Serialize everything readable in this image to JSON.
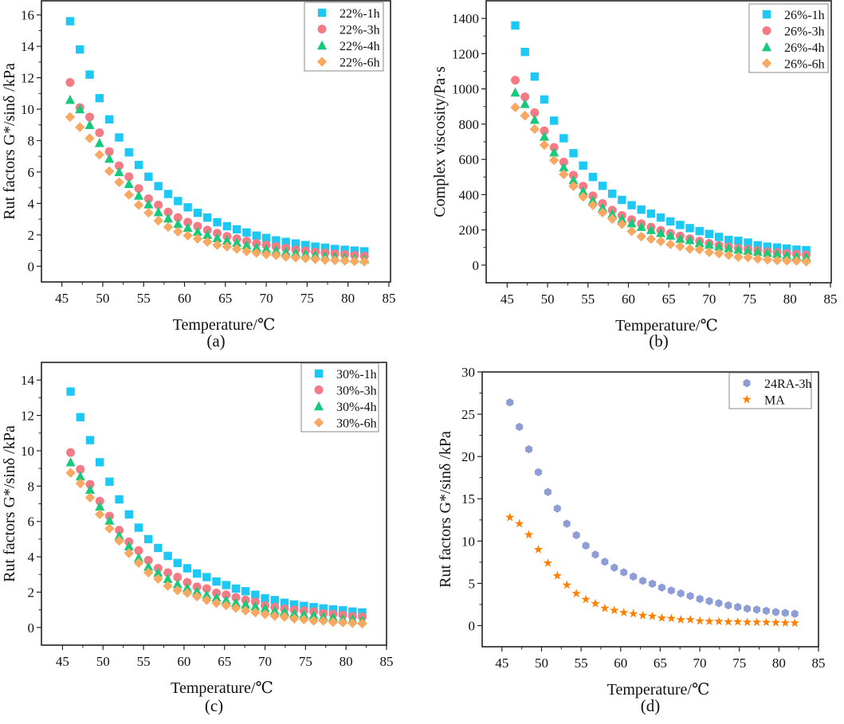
{
  "chart_data": [
    {
      "id": "a",
      "type": "scatter",
      "caption": "(a)",
      "xlabel": "Temperature/℃",
      "ylabel": "Rut factors G*/sinδ /kPa",
      "xlim": [
        42.5,
        85.2
      ],
      "ylim": [
        -1,
        16.9
      ],
      "xticks": [
        45,
        50,
        55,
        60,
        65,
        70,
        75,
        80,
        85
      ],
      "yticks": [
        0,
        2,
        4,
        6,
        8,
        10,
        12,
        14,
        16
      ],
      "legend": "top-right",
      "x": [
        46,
        47.2,
        48.4,
        49.6,
        50.8,
        52,
        53.2,
        54.4,
        55.6,
        56.8,
        58,
        59.2,
        60.4,
        61.6,
        62.8,
        64,
        65.2,
        66.4,
        67.6,
        68.8,
        70,
        71.2,
        72.4,
        73.6,
        74.8,
        76,
        77.2,
        78.4,
        79.6,
        80.8,
        82
      ],
      "series": [
        {
          "name": "22%-1h",
          "marker": "square",
          "color": "#1ec8f5",
          "values": [
            15.6,
            13.8,
            12.2,
            10.7,
            9.35,
            8.2,
            7.25,
            6.45,
            5.7,
            5.1,
            4.6,
            4.15,
            3.75,
            3.4,
            3.1,
            2.8,
            2.55,
            2.35,
            2.15,
            1.95,
            1.8,
            1.65,
            1.55,
            1.45,
            1.35,
            1.25,
            1.18,
            1.1,
            1.05,
            1.0,
            0.95
          ]
        },
        {
          "name": "22%-3h",
          "marker": "circle",
          "color": "#f47a86",
          "values": [
            11.7,
            10.1,
            9.5,
            8.5,
            7.3,
            6.4,
            5.7,
            4.95,
            4.3,
            3.9,
            3.45,
            3.1,
            2.8,
            2.55,
            2.3,
            2.1,
            1.9,
            1.75,
            1.6,
            1.45,
            1.35,
            1.25,
            1.15,
            1.05,
            0.98,
            0.9,
            0.85,
            0.8,
            0.75,
            0.7,
            0.65
          ]
        },
        {
          "name": "22%-4h",
          "marker": "triangle",
          "color": "#17c97a",
          "values": [
            10.6,
            10.0,
            9.0,
            7.85,
            6.85,
            6.0,
            5.25,
            4.5,
            3.95,
            3.45,
            3.05,
            2.7,
            2.45,
            2.2,
            2.0,
            1.8,
            1.65,
            1.5,
            1.35,
            1.2,
            1.1,
            1.0,
            0.92,
            0.85,
            0.78,
            0.72,
            0.65,
            0.6,
            0.55,
            0.5,
            0.45
          ]
        },
        {
          "name": "22%-6h",
          "marker": "diamond",
          "color": "#f9a862",
          "values": [
            9.5,
            8.85,
            8.15,
            7.1,
            6.05,
            5.35,
            4.55,
            3.9,
            3.4,
            2.9,
            2.5,
            2.2,
            1.95,
            1.75,
            1.55,
            1.35,
            1.25,
            1.1,
            0.95,
            0.85,
            0.75,
            0.7,
            0.6,
            0.55,
            0.5,
            0.45,
            0.4,
            0.38,
            0.35,
            0.32,
            0.3
          ]
        }
      ]
    },
    {
      "id": "b",
      "type": "scatter",
      "caption": "(b)",
      "xlabel": "Temperature/℃",
      "ylabel": "Complex viscosity/Pa·s",
      "xlim": [
        42.4,
        85.1
      ],
      "ylim": [
        -100,
        1500
      ],
      "xticks": [
        45,
        50,
        55,
        60,
        65,
        70,
        75,
        80,
        85
      ],
      "yticks": [
        0,
        200,
        400,
        600,
        800,
        1000,
        1200,
        1400
      ],
      "legend": "top-right",
      "x": [
        46,
        47.2,
        48.4,
        49.6,
        50.8,
        52,
        53.2,
        54.4,
        55.6,
        56.8,
        58,
        59.2,
        60.4,
        61.6,
        62.8,
        64,
        65.2,
        66.4,
        67.6,
        68.8,
        70,
        71.2,
        72.4,
        73.6,
        74.8,
        76,
        77.2,
        78.4,
        79.6,
        80.8,
        82
      ],
      "series": [
        {
          "name": "26%-1h",
          "marker": "square",
          "color": "#1ec8f5",
          "values": [
            1360,
            1210,
            1070,
            940,
            820,
            720,
            635,
            565,
            500,
            450,
            405,
            370,
            340,
            315,
            292,
            270,
            248,
            228,
            210,
            193,
            177,
            160,
            143,
            138,
            128,
            113,
            105,
            100,
            94,
            88,
            85
          ]
        },
        {
          "name": "26%-3h",
          "marker": "circle",
          "color": "#f47a86",
          "values": [
            1050,
            955,
            865,
            762,
            668,
            585,
            510,
            448,
            393,
            350,
            312,
            282,
            258,
            235,
            215,
            197,
            180,
            165,
            150,
            136,
            124,
            112,
            104,
            96,
            90,
            83,
            77,
            72,
            67,
            62,
            58
          ]
        },
        {
          "name": "26%-4h",
          "marker": "triangle",
          "color": "#17c97a",
          "values": [
            980,
            915,
            825,
            730,
            640,
            555,
            482,
            420,
            368,
            325,
            290,
            262,
            238,
            218,
            200,
            183,
            168,
            150,
            142,
            125,
            116,
            106,
            96,
            88,
            82,
            76,
            70,
            64,
            56,
            50,
            46
          ]
        },
        {
          "name": "26%-6h",
          "marker": "diamond",
          "color": "#f9a862",
          "values": [
            895,
            848,
            772,
            682,
            595,
            515,
            448,
            388,
            340,
            298,
            262,
            232,
            192,
            162,
            148,
            135,
            118,
            106,
            92,
            88,
            73,
            66,
            57,
            46,
            44,
            36,
            31,
            27,
            25,
            24,
            20
          ]
        }
      ]
    },
    {
      "id": "c",
      "type": "scatter",
      "caption": "(c)",
      "xlabel": "Temperature/℃",
      "ylabel": "Rut factors G*/sinδ /kPa",
      "xlim": [
        42.4,
        85
      ],
      "ylim": [
        -1,
        15
      ],
      "xticks": [
        45,
        50,
        55,
        60,
        65,
        70,
        75,
        80,
        85
      ],
      "yticks": [
        0,
        2,
        4,
        6,
        8,
        10,
        12,
        14
      ],
      "legend": "top-right",
      "x": [
        46,
        47.2,
        48.4,
        49.6,
        50.8,
        52,
        53.2,
        54.4,
        55.6,
        56.8,
        58,
        59.2,
        60.4,
        61.6,
        62.8,
        64,
        65.2,
        66.4,
        67.6,
        68.8,
        70,
        71.2,
        72.4,
        73.6,
        74.8,
        76,
        77.2,
        78.4,
        79.6,
        80.8,
        82
      ],
      "series": [
        {
          "name": "30%-1h",
          "marker": "square",
          "color": "#1ec8f5",
          "values": [
            13.35,
            11.9,
            10.6,
            9.35,
            8.25,
            7.25,
            6.4,
            5.65,
            5.0,
            4.5,
            4.05,
            3.65,
            3.35,
            3.05,
            2.85,
            2.6,
            2.4,
            2.2,
            2.05,
            1.85,
            1.65,
            1.55,
            1.4,
            1.3,
            1.22,
            1.15,
            1.08,
            1.02,
            0.97,
            0.9,
            0.85
          ]
        },
        {
          "name": "30%-3h",
          "marker": "circle",
          "color": "#f47a86",
          "values": [
            9.9,
            8.95,
            8.1,
            7.15,
            6.3,
            5.5,
            4.85,
            4.35,
            3.8,
            3.35,
            3.1,
            2.85,
            2.55,
            2.3,
            2.2,
            1.95,
            1.85,
            1.7,
            1.55,
            1.45,
            1.25,
            1.15,
            1.05,
            1.0,
            0.95,
            0.9,
            0.8,
            0.75,
            0.7,
            0.62,
            0.6
          ]
        },
        {
          "name": "30%-4h",
          "marker": "triangle",
          "color": "#17c97a",
          "values": [
            9.35,
            8.55,
            7.8,
            6.85,
            6.05,
            5.2,
            4.6,
            3.95,
            3.45,
            3.1,
            2.75,
            2.45,
            2.25,
            2.05,
            1.85,
            1.7,
            1.55,
            1.4,
            1.3,
            1.2,
            1.1,
            0.95,
            0.9,
            0.8,
            0.75,
            0.7,
            0.62,
            0.58,
            0.5,
            0.48,
            0.4
          ]
        },
        {
          "name": "30%-6h",
          "marker": "diamond",
          "color": "#f9a862",
          "values": [
            8.75,
            8.15,
            7.35,
            6.4,
            5.6,
            4.9,
            4.2,
            3.65,
            3.1,
            2.75,
            2.35,
            2.1,
            1.95,
            1.75,
            1.55,
            1.38,
            1.25,
            1.1,
            0.95,
            0.85,
            0.75,
            0.65,
            0.6,
            0.5,
            0.45,
            0.38,
            0.37,
            0.3,
            0.28,
            0.25,
            0.22
          ]
        }
      ]
    },
    {
      "id": "d",
      "type": "scatter",
      "caption": "(d)",
      "xlabel": "Temperature/℃",
      "ylabel": "Rut factors G*/sinδ /kPa",
      "xlim": [
        42.5,
        85
      ],
      "ylim": [
        -2.5,
        30
      ],
      "xticks": [
        45,
        50,
        55,
        60,
        65,
        70,
        75,
        80,
        85
      ],
      "yticks": [
        0,
        5,
        10,
        15,
        20,
        25,
        30
      ],
      "legend": "top-right",
      "x": [
        46,
        47.2,
        48.4,
        49.6,
        50.8,
        52,
        53.2,
        54.4,
        55.6,
        56.8,
        58,
        59.2,
        60.4,
        61.6,
        62.8,
        64,
        65.2,
        66.4,
        67.6,
        68.8,
        70,
        71.2,
        72.4,
        73.6,
        74.8,
        76,
        77.2,
        78.4,
        79.6,
        80.8,
        82
      ],
      "series": [
        {
          "name": "24RA-3h",
          "marker": "hexagon",
          "color": "#8e9dd6",
          "values": [
            26.4,
            23.5,
            20.85,
            18.15,
            15.8,
            13.85,
            12.05,
            10.7,
            9.45,
            8.4,
            7.55,
            6.85,
            6.3,
            5.8,
            5.3,
            4.95,
            4.5,
            4.15,
            3.8,
            3.5,
            3.15,
            2.9,
            2.65,
            2.4,
            2.2,
            2.0,
            1.9,
            1.75,
            1.6,
            1.5,
            1.4
          ]
        },
        {
          "name": "MA",
          "marker": "star",
          "color": "#ff8000",
          "values": [
            12.8,
            12.05,
            10.75,
            9.0,
            7.4,
            5.9,
            4.8,
            3.8,
            3.1,
            2.6,
            2.05,
            1.8,
            1.55,
            1.4,
            1.2,
            1.1,
            0.9,
            0.85,
            0.7,
            0.7,
            0.55,
            0.5,
            0.5,
            0.45,
            0.45,
            0.4,
            0.4,
            0.38,
            0.35,
            0.32,
            0.3
          ]
        }
      ]
    }
  ]
}
